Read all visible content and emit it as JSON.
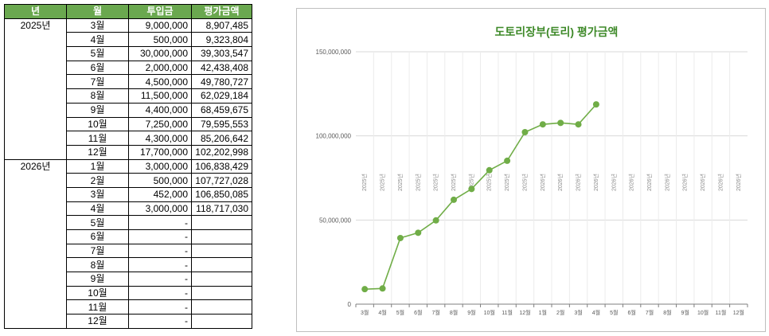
{
  "table": {
    "headers": [
      "년",
      "월",
      "투입금",
      "평가금액"
    ],
    "rows": [
      {
        "year": "2025년",
        "month": "3월",
        "invest": "9,000,000",
        "value": "8,907,485"
      },
      {
        "year": "",
        "month": "4월",
        "invest": "500,000",
        "value": "9,323,804"
      },
      {
        "year": "",
        "month": "5월",
        "invest": "30,000,000",
        "value": "39,303,547"
      },
      {
        "year": "",
        "month": "6월",
        "invest": "2,000,000",
        "value": "42,438,408"
      },
      {
        "year": "",
        "month": "7월",
        "invest": "4,500,000",
        "value": "49,780,727"
      },
      {
        "year": "",
        "month": "8월",
        "invest": "11,500,000",
        "value": "62,029,184"
      },
      {
        "year": "",
        "month": "9월",
        "invest": "4,400,000",
        "value": "68,459,675"
      },
      {
        "year": "",
        "month": "10월",
        "invest": "7,250,000",
        "value": "79,595,553"
      },
      {
        "year": "",
        "month": "11월",
        "invest": "4,300,000",
        "value": "85,206,642"
      },
      {
        "year": "",
        "month": "12월",
        "invest": "17,700,000",
        "value": "102,202,998"
      },
      {
        "year": "2026년",
        "month": "1월",
        "invest": "3,000,000",
        "value": "106,838,429"
      },
      {
        "year": "",
        "month": "2월",
        "invest": "500,000",
        "value": "107,727,028"
      },
      {
        "year": "",
        "month": "3월",
        "invest": "452,000",
        "value": "106,850,085"
      },
      {
        "year": "",
        "month": "4월",
        "invest": "3,000,000",
        "value": "118,717,030"
      },
      {
        "year": "",
        "month": "5월",
        "invest": "-",
        "value": ""
      },
      {
        "year": "",
        "month": "6월",
        "invest": "-",
        "value": ""
      },
      {
        "year": "",
        "month": "7월",
        "invest": "-",
        "value": ""
      },
      {
        "year": "",
        "month": "8월",
        "invest": "-",
        "value": ""
      },
      {
        "year": "",
        "month": "9월",
        "invest": "-",
        "value": ""
      },
      {
        "year": "",
        "month": "10월",
        "invest": "-",
        "value": ""
      },
      {
        "year": "",
        "month": "11월",
        "invest": "-",
        "value": ""
      },
      {
        "year": "",
        "month": "12월",
        "invest": "-",
        "value": ""
      }
    ]
  },
  "colors": {
    "header_bg": "#6aa84f",
    "line": "#70ad47",
    "title": "#3f8a2a"
  },
  "chart_data": {
    "type": "line",
    "title": "도토리장부(토리) 평가금액",
    "xlabel": "",
    "ylabel": "",
    "categories": [
      "3월",
      "4월",
      "5월",
      "6월",
      "7월",
      "8월",
      "9월",
      "10월",
      "11월",
      "12월",
      "1월",
      "2월",
      "3월",
      "4월",
      "5월",
      "6월",
      "7월",
      "8월",
      "9월",
      "10월",
      "11월",
      "12월"
    ],
    "category_groups": [
      "2025년",
      "2025년",
      "2025년",
      "2025년",
      "2025년",
      "2025년",
      "2025년",
      "2025년",
      "2025년",
      "2025년",
      "2026년",
      "2026년",
      "2026년",
      "2026년",
      "2026년",
      "2026년",
      "2026년",
      "2026년",
      "2026년",
      "2026년",
      "2026년",
      "2026년"
    ],
    "series": [
      {
        "values": [
          8907485,
          9323804,
          39303547,
          42438408,
          49780727,
          62029184,
          68459675,
          79595553,
          85206642,
          102202998,
          106838429,
          107727028,
          106850085,
          118717030,
          null,
          null,
          null,
          null,
          null,
          null,
          null,
          null
        ]
      }
    ],
    "ylim": [
      0,
      150000000
    ],
    "yticks": [
      0,
      50000000,
      100000000,
      150000000
    ],
    "ytick_labels": [
      "0",
      "50,000,000",
      "100,000,000",
      "150,000,000"
    ],
    "grid": true,
    "legend": "none"
  }
}
